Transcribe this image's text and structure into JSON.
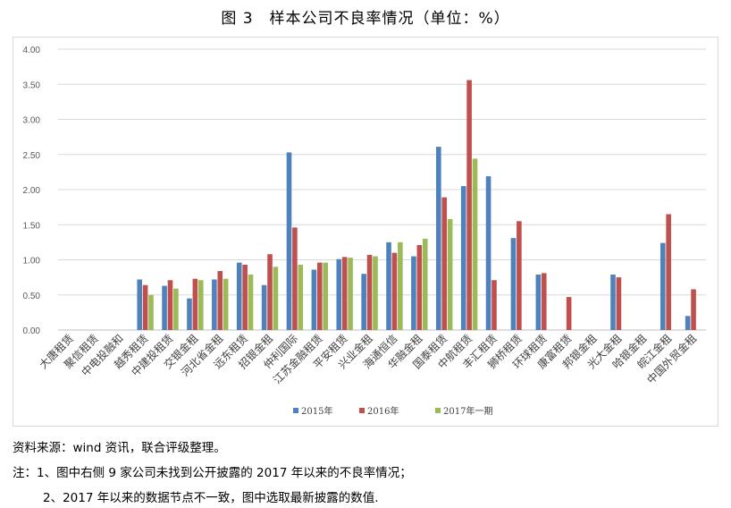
{
  "title": "图 3　样本公司不良率情况（单位：%）",
  "notes": {
    "source": "资料来源：wind 资讯，联合评级整理。",
    "note1": "注：1、图中右侧 9 家公司未找到公开披露的 2017 年以来的不良率情况；",
    "note2": "2、2017 年以来的数据节点不一致，图中选取最新披露的数值."
  },
  "chart_data": {
    "type": "bar",
    "title": "",
    "xlabel": "",
    "ylabel": "",
    "ylim": [
      0,
      4
    ],
    "yticks": [
      "0.00",
      "0.50",
      "1.00",
      "1.50",
      "2.00",
      "2.50",
      "3.00",
      "3.50",
      "4.00"
    ],
    "grid": true,
    "legend_position": "bottom",
    "categories": [
      "大唐租赁",
      "聚信租赁",
      "中电投融和",
      "越秀租赁",
      "中建投租赁",
      "交银金租",
      "河北省金租",
      "远东租赁",
      "招银金租",
      "仲利国际",
      "江苏金融租赁",
      "平安租赁",
      "兴业金租",
      "海通恒信",
      "华融金租",
      "国泰租赁",
      "中航租赁",
      "丰汇租赁",
      "狮桥租赁",
      "环球租赁",
      "康富租赁",
      "邦银金租",
      "光大金租",
      "哈银金租",
      "皖江金租",
      "中国外贸金租"
    ],
    "series": [
      {
        "name": "2015年",
        "color": "#4f81bd",
        "values": [
          0,
          0,
          0,
          0.72,
          0.63,
          0.45,
          0.72,
          0.96,
          0.64,
          2.53,
          0.86,
          1.01,
          0.8,
          1.25,
          1.05,
          2.61,
          2.05,
          2.19,
          1.31,
          0.79,
          0,
          0,
          0.79,
          0,
          1.24,
          0.2
        ]
      },
      {
        "name": "2016年",
        "color": "#c0504d",
        "values": [
          0,
          0,
          0,
          0.64,
          0.71,
          0.73,
          0.84,
          0.93,
          1.08,
          1.46,
          0.96,
          1.04,
          1.07,
          1.1,
          1.21,
          1.89,
          3.56,
          0.71,
          1.55,
          0.81,
          0.47,
          0,
          0.75,
          0,
          1.65,
          0.58
        ]
      },
      {
        "name": "2017年一期",
        "color": "#9bbb59",
        "values": [
          0,
          0,
          0,
          0.5,
          0.59,
          0.71,
          0.73,
          0.79,
          0.9,
          0.93,
          0.96,
          1.03,
          1.05,
          1.25,
          1.3,
          1.58,
          2.44,
          null,
          null,
          null,
          null,
          null,
          null,
          null,
          null,
          null
        ]
      }
    ]
  }
}
